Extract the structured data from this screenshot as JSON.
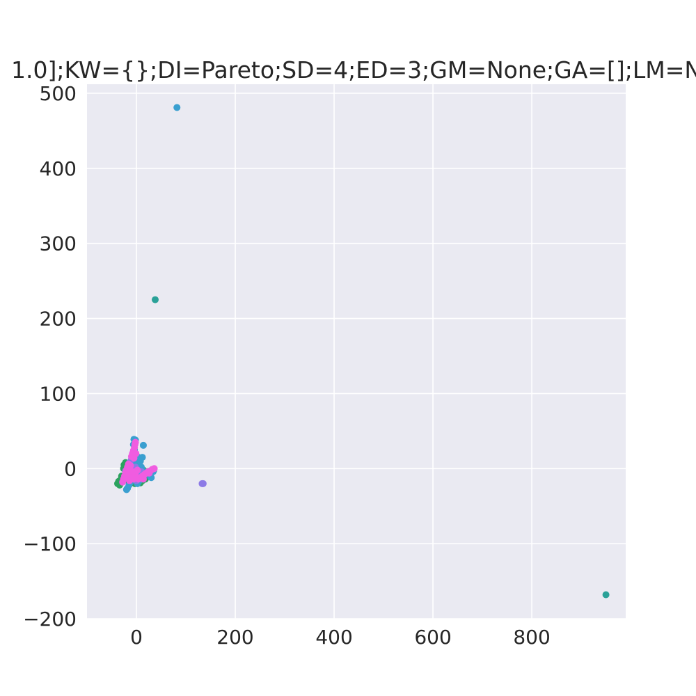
{
  "chart_data": {
    "type": "scatter",
    "title": "1.0];KW={};DI=Pareto;SD=4;ED=3;GM=None;GA=[];LM=N",
    "xlabel": "",
    "ylabel": "",
    "xlim": [
      -100,
      990
    ],
    "ylim": [
      -200,
      512
    ],
    "xticks": [
      0,
      200,
      400,
      600,
      800
    ],
    "yticks": [
      -200,
      -100,
      0,
      100,
      200,
      300,
      400,
      500
    ],
    "ytick_labels": [
      "−200",
      "−100",
      "0",
      "100",
      "200",
      "300",
      "400",
      "500"
    ],
    "grid": true,
    "background": "#eaeaf2",
    "series": [
      {
        "color": "#2ca25f",
        "points": [
          [
            -38,
            -20
          ],
          [
            -36,
            -17
          ],
          [
            -34,
            -22
          ],
          [
            -32,
            -15
          ],
          [
            -30,
            -18
          ],
          [
            -28,
            -12
          ],
          [
            -26,
            -16
          ],
          [
            -24,
            -9
          ],
          [
            -22,
            -14
          ],
          [
            -20,
            -6
          ],
          [
            -18,
            -11
          ],
          [
            -15,
            -4
          ],
          [
            -12,
            -8
          ],
          [
            -10,
            2
          ],
          [
            -25,
            5
          ],
          [
            -22,
            8
          ],
          [
            -20,
            -2
          ],
          [
            -17,
            -16
          ],
          [
            -14,
            -12
          ],
          [
            -8,
            -14
          ],
          [
            -5,
            -10
          ],
          [
            0,
            -9
          ],
          [
            4,
            -15
          ],
          [
            8,
            -19
          ],
          [
            12,
            -16
          ],
          [
            16,
            -12
          ],
          [
            20,
            -10
          ],
          [
            24,
            -8
          ],
          [
            28,
            -6
          ],
          [
            32,
            -4
          ],
          [
            35,
            -2
          ],
          [
            10,
            -5
          ],
          [
            14,
            -2
          ],
          [
            -30,
            -10
          ],
          [
            -26,
            0
          ],
          [
            -16,
            3
          ],
          [
            5,
            -6
          ],
          [
            18,
            -14
          ],
          [
            22,
            -4
          ],
          [
            -3,
            -20
          ]
        ]
      },
      {
        "color": "#2aa198",
        "points": [
          [
            38,
            225
          ],
          [
            950,
            -168
          ],
          [
            -20,
            -8
          ],
          [
            -14,
            6
          ],
          [
            -8,
            16
          ],
          [
            -4,
            22
          ],
          [
            0,
            -3
          ],
          [
            6,
            -10
          ],
          [
            12,
            -7
          ],
          [
            18,
            -5
          ],
          [
            24,
            -9
          ],
          [
            30,
            -5
          ]
        ]
      },
      {
        "color": "#3a9fd0",
        "points": [
          [
            82,
            481
          ],
          [
            -20,
            -28
          ],
          [
            -18,
            -26
          ],
          [
            -15,
            -22
          ],
          [
            -12,
            -18
          ],
          [
            -9,
            -14
          ],
          [
            -6,
            -8
          ],
          [
            -3,
            -2
          ],
          [
            0,
            4
          ],
          [
            -2,
            10
          ],
          [
            -5,
            18
          ],
          [
            -4,
            25
          ],
          [
            -6,
            32
          ],
          [
            -5,
            39
          ],
          [
            -2,
            38
          ],
          [
            4,
            15
          ],
          [
            8,
            10
          ],
          [
            12,
            15
          ],
          [
            14,
            31
          ],
          [
            10,
            2
          ],
          [
            16,
            -4
          ],
          [
            20,
            -6
          ],
          [
            26,
            -8
          ],
          [
            30,
            -12
          ],
          [
            34,
            -4
          ],
          [
            -10,
            -12
          ],
          [
            -16,
            -6
          ],
          [
            -12,
            0
          ],
          [
            2,
            -20
          ],
          [
            6,
            -16
          ]
        ]
      },
      {
        "color": "#8c7ae6",
        "points": [
          [
            133,
            -20
          ],
          [
            135,
            -20
          ],
          [
            -22,
            -3
          ],
          [
            -18,
            2
          ],
          [
            -14,
            8
          ],
          [
            -10,
            12
          ],
          [
            -6,
            18
          ],
          [
            -2,
            2
          ],
          [
            2,
            -5
          ],
          [
            6,
            -8
          ],
          [
            10,
            -4
          ],
          [
            -12,
            -10
          ],
          [
            -8,
            -6
          ],
          [
            -4,
            -12
          ],
          [
            0,
            -16
          ]
        ]
      },
      {
        "color": "#f05ce0",
        "points": [
          [
            -28,
            -18
          ],
          [
            -26,
            -14
          ],
          [
            -24,
            -10
          ],
          [
            -22,
            -6
          ],
          [
            -20,
            -2
          ],
          [
            -18,
            2
          ],
          [
            -16,
            6
          ],
          [
            -14,
            -16
          ],
          [
            -12,
            -12
          ],
          [
            -10,
            -8
          ],
          [
            -8,
            -4
          ],
          [
            -6,
            -14
          ],
          [
            -4,
            -10
          ],
          [
            -2,
            -6
          ],
          [
            0,
            -12
          ],
          [
            4,
            -14
          ],
          [
            8,
            -12
          ],
          [
            12,
            -10
          ],
          [
            16,
            -8
          ],
          [
            20,
            -6
          ],
          [
            24,
            -4
          ],
          [
            28,
            -3
          ],
          [
            32,
            -1
          ],
          [
            36,
            0
          ],
          [
            -10,
            16
          ],
          [
            -8,
            20
          ],
          [
            -6,
            24
          ],
          [
            -4,
            28
          ],
          [
            -3,
            32
          ],
          [
            -2,
            35
          ],
          [
            -12,
            4
          ],
          [
            -16,
            -4
          ],
          [
            -20,
            -12
          ],
          [
            -5,
            14
          ],
          [
            -1,
            20
          ],
          [
            2,
            -2
          ],
          [
            14,
            -14
          ],
          [
            26,
            -6
          ]
        ]
      }
    ]
  }
}
